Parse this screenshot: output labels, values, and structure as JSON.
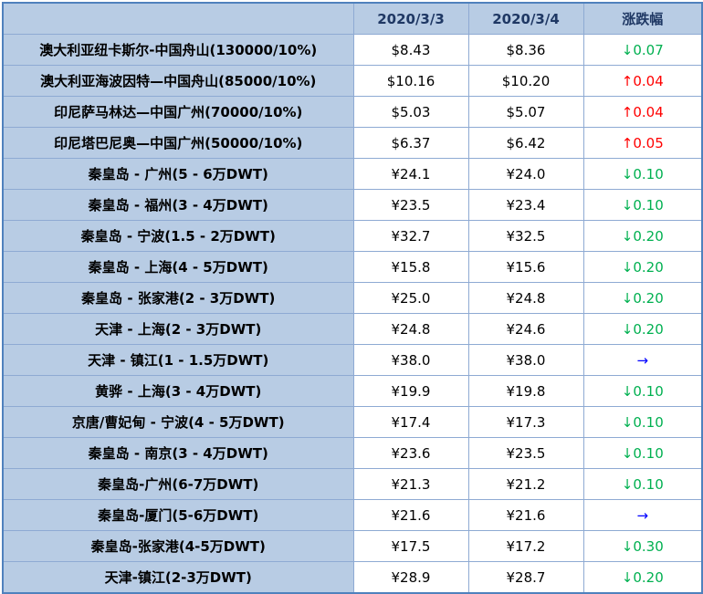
{
  "header": {
    "route": "",
    "date1": "2020/3/3",
    "date2": "2020/3/4",
    "change": "涨跌幅"
  },
  "rows": [
    {
      "route": "澳大利亚纽卡斯尔-中国舟山(130000/10%)",
      "v1": "$8.43",
      "v2": "$8.36",
      "change": "↓0.07",
      "dir": "down"
    },
    {
      "route": "澳大利亚海波因特—中国舟山(85000/10%)",
      "v1": "$10.16",
      "v2": "$10.20",
      "change": "↑0.04",
      "dir": "up"
    },
    {
      "route": "印尼萨马林达—中国广州(70000/10%)",
      "v1": "$5.03",
      "v2": "$5.07",
      "change": "↑0.04",
      "dir": "up"
    },
    {
      "route": "印尼塔巴尼奥—中国广州(50000/10%)",
      "v1": "$6.37",
      "v2": "$6.42",
      "change": "↑0.05",
      "dir": "up"
    },
    {
      "route": "秦皇岛 - 广州(5 - 6万DWT)",
      "v1": "¥24.1",
      "v2": "¥24.0",
      "change": "↓0.10",
      "dir": "down"
    },
    {
      "route": "秦皇岛 - 福州(3 - 4万DWT)",
      "v1": "¥23.5",
      "v2": "¥23.4",
      "change": "↓0.10",
      "dir": "down"
    },
    {
      "route": "秦皇岛 - 宁波(1.5 - 2万DWT)",
      "v1": "¥32.7",
      "v2": "¥32.5",
      "change": "↓0.20",
      "dir": "down"
    },
    {
      "route": "秦皇岛 - 上海(4 - 5万DWT)",
      "v1": "¥15.8",
      "v2": "¥15.6",
      "change": "↓0.20",
      "dir": "down"
    },
    {
      "route": "秦皇岛 - 张家港(2 - 3万DWT)",
      "v1": "¥25.0",
      "v2": "¥24.8",
      "change": "↓0.20",
      "dir": "down"
    },
    {
      "route": "天津 - 上海(2 - 3万DWT)",
      "v1": "¥24.8",
      "v2": "¥24.6",
      "change": "↓0.20",
      "dir": "down"
    },
    {
      "route": "天津 - 镇江(1 - 1.5万DWT)",
      "v1": "¥38.0",
      "v2": "¥38.0",
      "change": "→",
      "dir": "flat"
    },
    {
      "route": "黄骅 - 上海(3 - 4万DWT)",
      "v1": "¥19.9",
      "v2": "¥19.8",
      "change": "↓0.10",
      "dir": "down"
    },
    {
      "route": "京唐/曹妃甸 - 宁波(4 - 5万DWT)",
      "v1": "¥17.4",
      "v2": "¥17.3",
      "change": "↓0.10",
      "dir": "down"
    },
    {
      "route": "秦皇岛 - 南京(3 - 4万DWT)",
      "v1": "¥23.6",
      "v2": "¥23.5",
      "change": "↓0.10",
      "dir": "down"
    },
    {
      "route": "秦皇岛-广州(6-7万DWT)",
      "v1": "¥21.3",
      "v2": "¥21.2",
      "change": "↓0.10",
      "dir": "down"
    },
    {
      "route": "秦皇岛-厦门(5-6万DWT)",
      "v1": "¥21.6",
      "v2": "¥21.6",
      "change": "→",
      "dir": "flat"
    },
    {
      "route": "秦皇岛-张家港(4-5万DWT)",
      "v1": "¥17.5",
      "v2": "¥17.2",
      "change": "↓0.30",
      "dir": "down"
    },
    {
      "route": "天津-镇江(2-3万DWT)",
      "v1": "¥28.9",
      "v2": "¥28.7",
      "change": "↓0.20",
      "dir": "down"
    }
  ],
  "colors": {
    "header_bg": "#b8cce4",
    "border": "#8eaad3",
    "down": "#00b050",
    "up": "#ff0000",
    "flat": "#0000ff"
  }
}
